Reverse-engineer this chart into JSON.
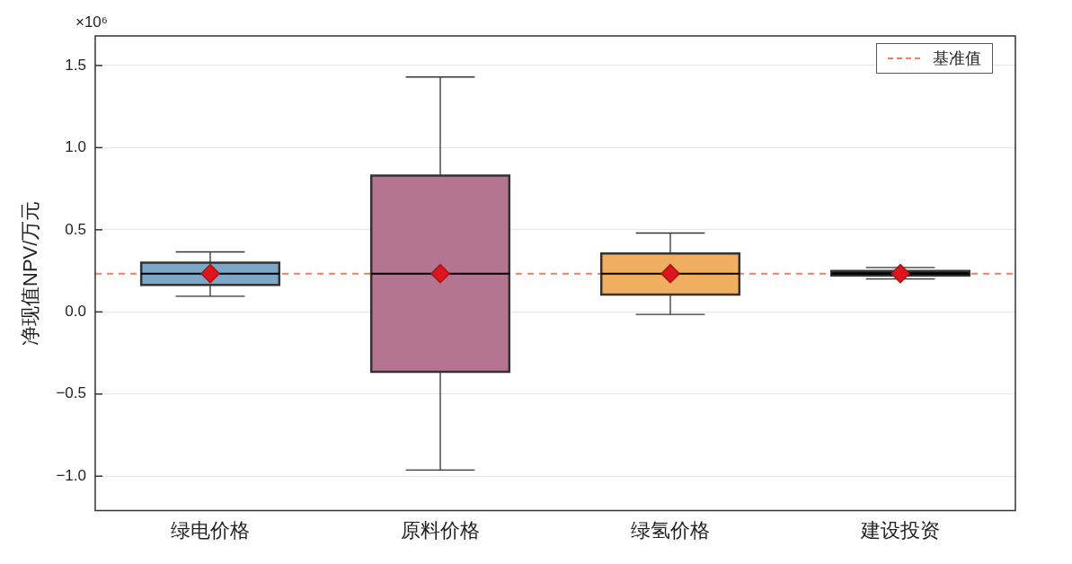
{
  "chart_data": {
    "type": "box",
    "ylabel": "净现值NPV/万元",
    "annotations": [
      "×10⁶"
    ],
    "categories": [
      "绿电价格",
      "原料价格",
      "绿氢价格",
      "建设投资"
    ],
    "colors": [
      "#7ea6c6",
      "#b3758f",
      "#efae60",
      "#111111"
    ],
    "boxes": [
      {
        "low": 0.095,
        "q1": 0.164,
        "median": 0.233,
        "q3": 0.3,
        "high": 0.365,
        "mean": 0.233
      },
      {
        "low": -0.963,
        "q1": -0.365,
        "median": 0.233,
        "q3": 0.83,
        "high": 1.43,
        "mean": 0.233
      },
      {
        "low": -0.016,
        "q1": 0.106,
        "median": 0.233,
        "q3": 0.355,
        "high": 0.48,
        "mean": 0.233
      },
      {
        "low": 0.2,
        "q1": 0.222,
        "median": 0.233,
        "q3": 0.249,
        "high": 0.27,
        "mean": 0.233
      }
    ],
    "ylim": [
      -1.21,
      1.68
    ],
    "yticks": [
      {
        "value": -1,
        "label": "−1.0"
      },
      {
        "value": -0.5,
        "label": "−0.5"
      },
      {
        "value": 0,
        "label": "0.0"
      },
      0.5,
      {
        "value": 1,
        "label": "1.0"
      },
      1.5
    ],
    "ref_lines": [
      {
        "axis": "y",
        "value": 0.233,
        "label": "基准值",
        "color": "#f07f5a",
        "line_style": "dashed"
      }
    ],
    "grid": "y",
    "legend": "top right",
    "marker": "diamond"
  }
}
